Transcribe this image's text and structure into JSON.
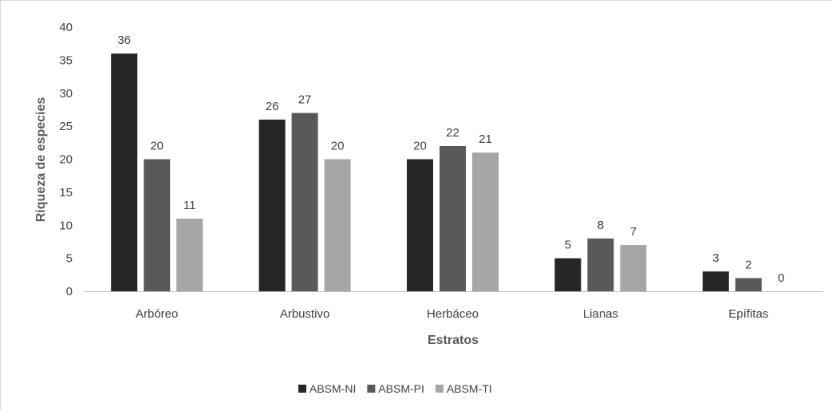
{
  "chart_data": {
    "type": "bar",
    "title": "",
    "xlabel": "Estratos",
    "ylabel": "Riqueza de especies",
    "ylim": [
      0,
      40
    ],
    "yticks": [
      0,
      5,
      10,
      15,
      20,
      25,
      30,
      35,
      40
    ],
    "categories": [
      "Arbóreo",
      "Arbustivo",
      "Herbáceo",
      "Lianas",
      "Epífitas"
    ],
    "series": [
      {
        "name": "ABSM-NI",
        "color": "#262626",
        "values": [
          36,
          26,
          20,
          5,
          3
        ]
      },
      {
        "name": "ABSM-PI",
        "color": "#595959",
        "values": [
          20,
          27,
          22,
          8,
          2
        ]
      },
      {
        "name": "ABSM-TI",
        "color": "#a6a6a6",
        "values": [
          11,
          20,
          21,
          7,
          0
        ]
      }
    ],
    "grid": false,
    "legend_position": "bottom",
    "data_labels": true
  }
}
